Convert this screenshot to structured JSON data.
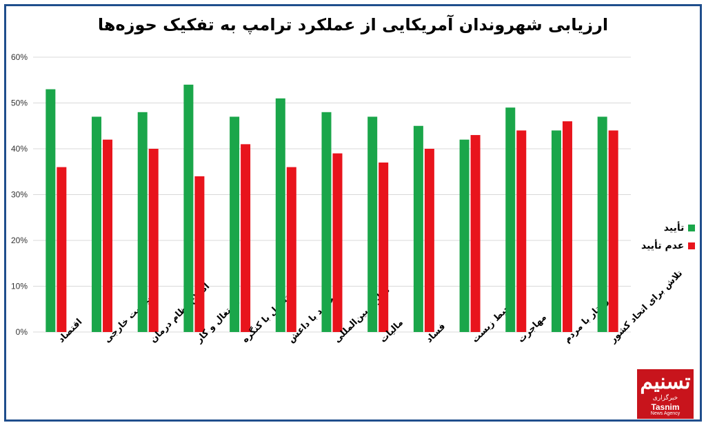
{
  "title": "ارزیابی شهروندان آمریکایی از عملکرد ترامپ به تفکیک حوزه‌ها",
  "colors": {
    "approve": "#1aa64a",
    "disapprove": "#e8141c",
    "grid": "#d9d9d9",
    "frame": "#1f4e8c"
  },
  "legend": [
    {
      "label": "تأیید",
      "color": "#1aa64a"
    },
    {
      "label": "عدم تأیید",
      "color": "#e8141c"
    }
  ],
  "logo": {
    "main": "تسنیم",
    "sub": "خبرگزاری",
    "en": "Tasnim",
    "en2": "News Agency"
  },
  "chart_data": {
    "type": "bar",
    "title": "ارزیابی شهروندان آمریکایی از عملکرد ترامپ به تفکیک حوزه‌ها",
    "categories": [
      "اقتصاد",
      "سیاست خارجی",
      "اصلاح نظام درمان",
      "اشتغال و کار",
      "تعامل با کنگره",
      "برخورد با داعش",
      "تجارت بین‌المللی",
      "مالیات",
      "فساد",
      "محیط زیست",
      "مهاجرت",
      "رفتار با مردم",
      "تلاش برای اتحاد کشور"
    ],
    "series": [
      {
        "name": "تأیید",
        "color": "#1aa64a",
        "values": [
          53,
          47,
          48,
          54,
          47,
          51,
          48,
          47,
          45,
          42,
          49,
          44,
          47
        ]
      },
      {
        "name": "عدم تأیید",
        "color": "#e8141c",
        "values": [
          36,
          42,
          40,
          34,
          41,
          36,
          39,
          37,
          40,
          43,
          44,
          46,
          44
        ]
      }
    ],
    "yticks": [
      "0%",
      "10%",
      "20%",
      "30%",
      "40%",
      "50%",
      "60%"
    ],
    "ylim": [
      0,
      60
    ],
    "grid": true,
    "legend_position": "right"
  }
}
